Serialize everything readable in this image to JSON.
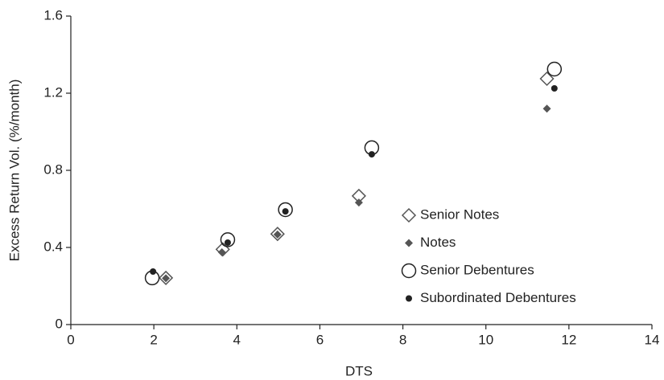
{
  "chart_data": {
    "type": "scatter",
    "x_label": "DTS",
    "y_label": "Excess Return Vol. (%/month)",
    "xlim": [
      0,
      14
    ],
    "xticks": [
      0,
      2,
      4,
      6,
      8,
      10,
      12,
      14
    ],
    "ylim": [
      0,
      1.6
    ],
    "yticks": [
      0,
      0.4,
      0.8,
      1.2,
      1.6
    ],
    "grid": false,
    "legend": "right",
    "series": [
      {
        "name": "Senior Notes",
        "color": "#555555",
        "marker": "diamond",
        "filled": false,
        "x": [
          2.29,
          3.66,
          4.98,
          6.94,
          11.47
        ],
        "values": [
          0.242,
          0.39,
          0.47,
          0.667,
          1.275
        ]
      },
      {
        "name": "Notes",
        "color": "#555555",
        "marker": "diamond",
        "filled": true,
        "x": [
          2.29,
          3.64,
          4.98,
          6.94,
          11.47
        ],
        "values": [
          0.24,
          0.375,
          0.467,
          0.633,
          1.12
        ]
      },
      {
        "name": "Senior Debentures",
        "color": "#222222",
        "marker": "circle",
        "filled": false,
        "x": [
          1.96,
          3.78,
          5.17,
          7.25,
          11.65
        ],
        "values": [
          0.242,
          0.44,
          0.596,
          0.917,
          1.325
        ]
      },
      {
        "name": "Subordinated Debentures",
        "color": "#222222",
        "marker": "circle",
        "filled": true,
        "x": [
          1.98,
          3.78,
          5.17,
          7.25,
          11.65
        ],
        "values": [
          0.275,
          0.425,
          0.587,
          0.883,
          1.225
        ]
      }
    ]
  }
}
